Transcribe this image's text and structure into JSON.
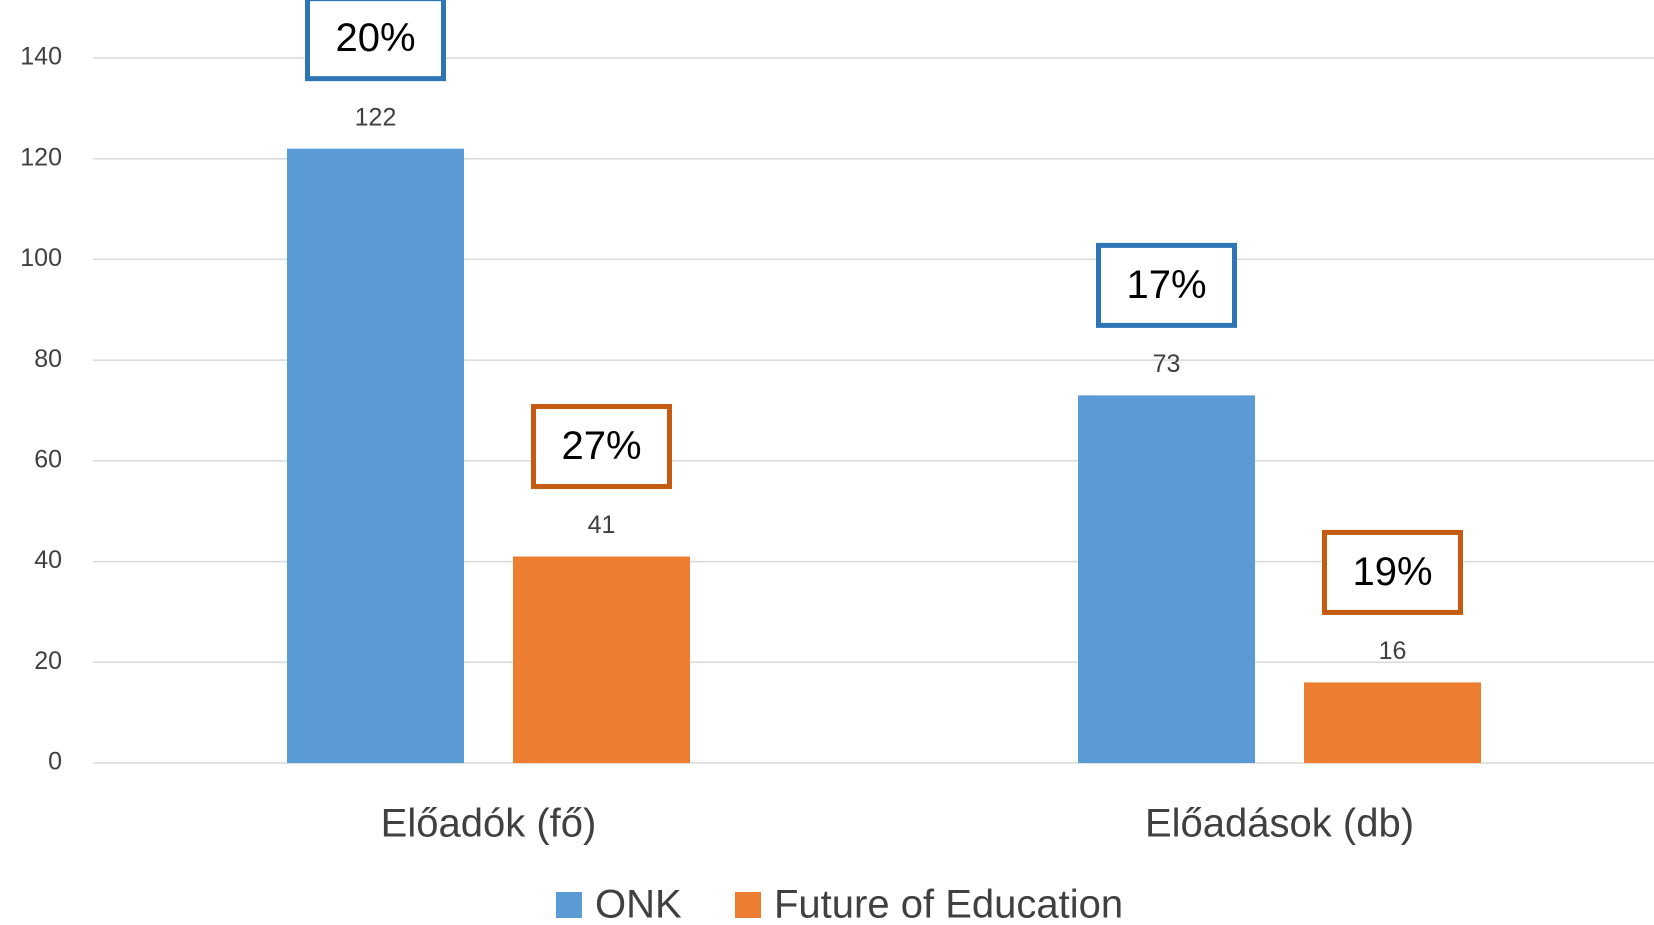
{
  "chart_data": {
    "type": "bar",
    "categories": [
      "Előadók (fő)",
      "Előadások (db)"
    ],
    "series": [
      {
        "name": "ONK",
        "color": "#5b9bd5",
        "annotation_color": "#2e75b6",
        "values": [
          122,
          73
        ],
        "annotations": [
          "20%",
          "17%"
        ]
      },
      {
        "name": "Future of Education",
        "color": "#ed7d31",
        "annotation_color": "#c55a11",
        "values": [
          41,
          16
        ],
        "annotations": [
          "27%",
          "19%"
        ]
      }
    ],
    "ylim": [
      0,
      140
    ],
    "yticks": [
      0,
      20,
      40,
      60,
      80,
      100,
      120,
      140
    ],
    "grid": true,
    "legend": "bottom"
  }
}
